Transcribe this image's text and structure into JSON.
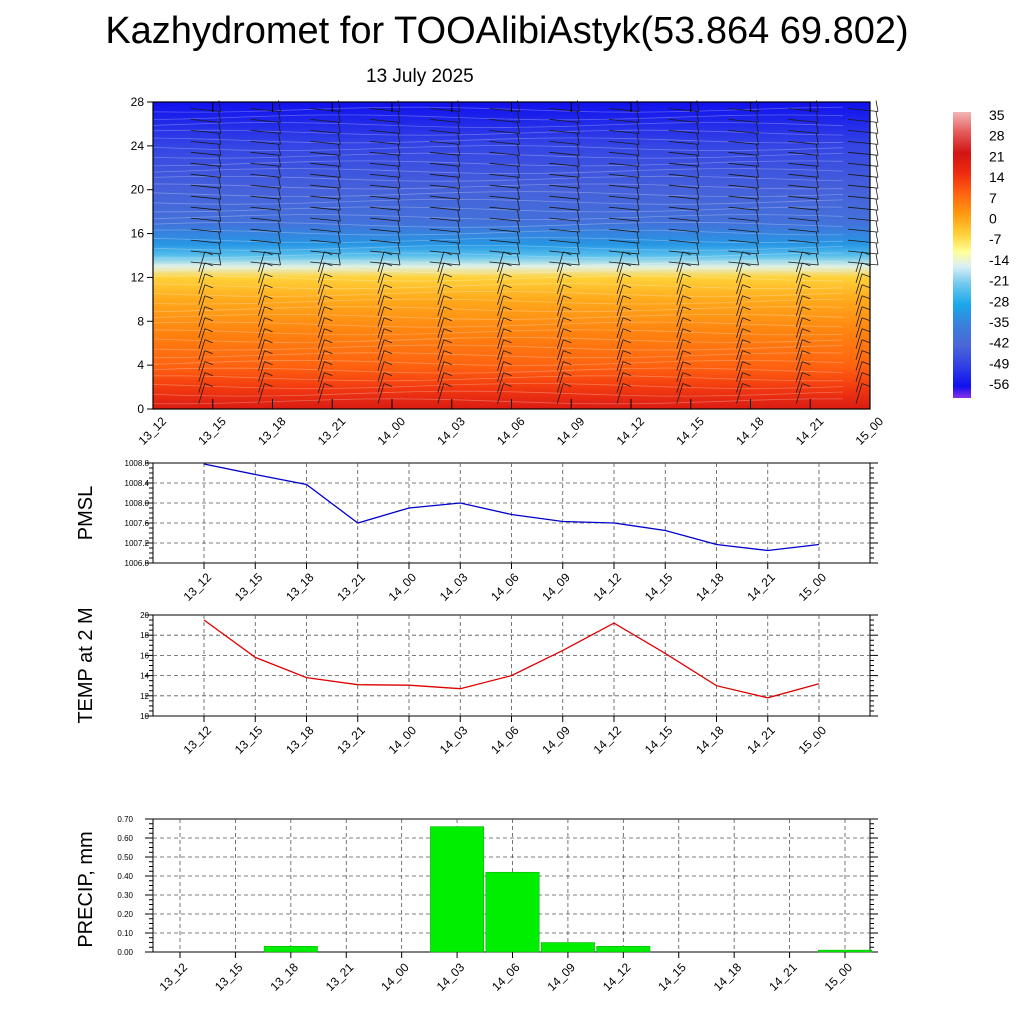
{
  "header": {
    "title": "Kazhydromet for TOOAlibiAstyk(53.864 69.802)",
    "date": "13 July 2025"
  },
  "times": [
    "13_12",
    "13_15",
    "13_18",
    "13_21",
    "14_00",
    "14_03",
    "14_06",
    "14_09",
    "14_12",
    "14_15",
    "14_18",
    "14_21",
    "15_00"
  ],
  "colors": {
    "pmsl_line": "#0000cc",
    "temp_line": "#dd0000",
    "precip_bar": "#00ee00",
    "grid": "#555555"
  },
  "chart_data": [
    {
      "type": "heatmap",
      "y_ticks": [
        0,
        4,
        8,
        12,
        16,
        20,
        24,
        28
      ],
      "ylim": [
        0,
        28
      ],
      "colorbar": {
        "labels": [
          "35",
          "28",
          "21",
          "14",
          "7",
          "0",
          "-7",
          "-14",
          "-21",
          "-28",
          "-35",
          "-42",
          "-49",
          "-56"
        ],
        "stops": [
          {
            "v": 38,
            "c": "#f2b6b6"
          },
          {
            "v": 31,
            "c": "#e55a5a"
          },
          {
            "v": 24,
            "c": "#d21414"
          },
          {
            "v": 17,
            "c": "#ee2b10"
          },
          {
            "v": 10,
            "c": "#ff6410"
          },
          {
            "v": 3,
            "c": "#ff9a10"
          },
          {
            "v": -4,
            "c": "#ffd23a"
          },
          {
            "v": -10,
            "c": "#ffff9a"
          },
          {
            "v": -15,
            "c": "#d8eef6"
          },
          {
            "v": -21,
            "c": "#70c8ee"
          },
          {
            "v": -28,
            "c": "#18a8ea"
          },
          {
            "v": -35,
            "c": "#3a80dc"
          },
          {
            "v": -42,
            "c": "#4a66d8"
          },
          {
            "v": -49,
            "c": "#3040e6"
          },
          {
            "v": -56,
            "c": "#1010ee"
          },
          {
            "v": -60,
            "c": "#8a30e6"
          }
        ]
      },
      "profile": [
        {
          "y": 0,
          "v": 22
        },
        {
          "y": 2,
          "v": 15
        },
        {
          "y": 4,
          "v": 10
        },
        {
          "y": 7,
          "v": 6
        },
        {
          "y": 10,
          "v": 1
        },
        {
          "y": 12,
          "v": -4
        },
        {
          "y": 13,
          "v": -14
        },
        {
          "y": 14,
          "v": -23
        },
        {
          "y": 15,
          "v": -31
        },
        {
          "y": 17,
          "v": -39
        },
        {
          "y": 20,
          "v": -43
        },
        {
          "y": 24,
          "v": -48
        },
        {
          "y": 28,
          "v": -56
        }
      ]
    },
    {
      "type": "line",
      "ylabel": "PMSL",
      "ylim": [
        1006.8,
        1008.8
      ],
      "y_ticks": [
        "1006.8",
        "1007.2",
        "1007.6",
        "1008.0",
        "1008.4",
        "1008.8"
      ],
      "values": [
        1008.78,
        1008.57,
        1008.37,
        1007.6,
        1007.9,
        1008.0,
        1007.77,
        1007.63,
        1007.6,
        1007.45,
        1007.17,
        1007.05,
        1007.17
      ]
    },
    {
      "type": "line",
      "ylabel": "TEMP at 2 M",
      "ylim": [
        10,
        20
      ],
      "y_ticks": [
        "10",
        "12",
        "14",
        "16",
        "18",
        "20"
      ],
      "values": [
        19.5,
        15.8,
        13.8,
        13.1,
        13.05,
        12.7,
        14.0,
        16.5,
        19.2,
        16.2,
        13.0,
        11.8,
        13.2
      ]
    },
    {
      "type": "bar",
      "ylabel": "PRECIP, mm",
      "ylim": [
        0,
        0.7
      ],
      "y_ticks": [
        "0.00",
        "0.10",
        "0.20",
        "0.30",
        "0.40",
        "0.50",
        "0.60",
        "0.70"
      ],
      "values": [
        0,
        0,
        0.03,
        0,
        0,
        0.66,
        0.42,
        0.05,
        0.03,
        0,
        0,
        0,
        0.01
      ]
    }
  ]
}
